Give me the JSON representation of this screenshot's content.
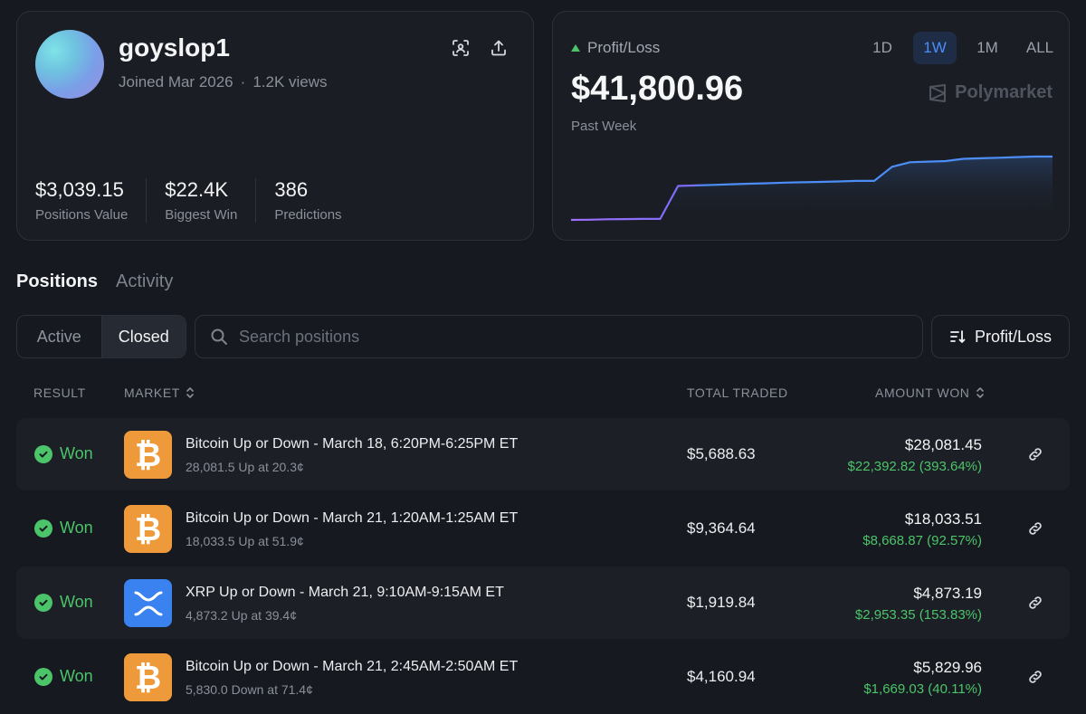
{
  "profile": {
    "username": "goyslop1",
    "joined": "Joined Mar 2026",
    "separator": "·",
    "views": "1.2K views",
    "stats": [
      {
        "value": "$3,039.15",
        "label": "Positions Value"
      },
      {
        "value": "$22.4K",
        "label": "Biggest Win"
      },
      {
        "value": "386",
        "label": "Predictions"
      }
    ]
  },
  "pnl": {
    "label": "Profit/Loss",
    "value": "$41,800.96",
    "period": "Past Week",
    "ranges": [
      "1D",
      "1W",
      "1M",
      "ALL"
    ],
    "active_range": "1W",
    "brand": "Polymarket",
    "colors": {
      "line_start": "#a070ff",
      "line_end": "#4c8df6",
      "up": "#4cc46a"
    },
    "series": [
      0,
      0.2,
      0.6,
      0.7,
      0.9,
      0.9,
      30,
      30.5,
      31,
      31.5,
      32,
      32.4,
      33,
      33.3,
      33.6,
      34,
      34.5,
      34.5,
      47,
      51,
      51.5,
      52,
      54,
      54.5,
      55,
      55.5,
      56,
      56
    ]
  },
  "tabs": {
    "positions": "Positions",
    "activity": "Activity"
  },
  "filters": {
    "active": "Active",
    "closed": "Closed",
    "search_placeholder": "Search positions",
    "sort_label": "Profit/Loss"
  },
  "table": {
    "headers": {
      "result": "RESULT",
      "market": "MARKET",
      "total_traded": "TOTAL TRADED",
      "amount_won": "AMOUNT WON"
    },
    "rows": [
      {
        "result": "Won",
        "coin": "btc",
        "title": "Bitcoin Up or Down - March 18, 6:20PM-6:25PM ET",
        "sub": "28,081.5 Up at 20.3¢",
        "traded": "$5,688.63",
        "amount": "$28,081.45",
        "gain": "$22,392.82 (393.64%)"
      },
      {
        "result": "Won",
        "coin": "btc",
        "title": "Bitcoin Up or Down - March 21, 1:20AM-1:25AM ET",
        "sub": "18,033.5 Up at 51.9¢",
        "traded": "$9,364.64",
        "amount": "$18,033.51",
        "gain": "$8,668.87 (92.57%)"
      },
      {
        "result": "Won",
        "coin": "xrp",
        "title": "XRP Up or Down - March 21, 9:10AM-9:15AM ET",
        "sub": "4,873.2 Up at 39.4¢",
        "traded": "$1,919.84",
        "amount": "$4,873.19",
        "gain": "$2,953.35 (153.83%)"
      },
      {
        "result": "Won",
        "coin": "btc",
        "title": "Bitcoin Up or Down - March 21, 2:45AM-2:50AM ET",
        "sub": "5,830.0 Down at 71.4¢",
        "traded": "$4,160.94",
        "amount": "$5,829.96",
        "gain": "$1,669.03 (40.11%)"
      }
    ]
  }
}
